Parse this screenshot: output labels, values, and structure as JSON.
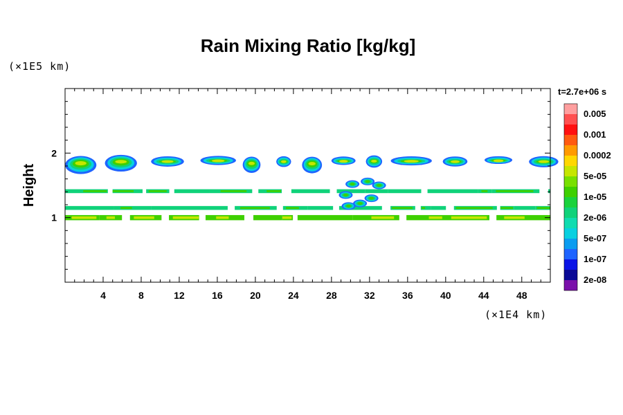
{
  "chart_data": {
    "type": "heatmap",
    "title": "Rain Mixing Ratio [kg/kg]",
    "ylabel": "Height",
    "xunit": "(×1E4 km)",
    "yunit": "(×1E5 km)",
    "time_label": "t=2.7e+06 s",
    "xlim": [
      0,
      51
    ],
    "ylim": [
      0,
      3
    ],
    "xticks": [
      4,
      8,
      12,
      16,
      20,
      24,
      28,
      32,
      36,
      40,
      44,
      48
    ],
    "yticks": [
      1,
      2
    ],
    "colorbar": [
      {
        "label": "0.005",
        "color": "#ff9f9f"
      },
      {
        "label": "",
        "color": "#ff5050"
      },
      {
        "label": "0.001",
        "color": "#ff1010"
      },
      {
        "label": "",
        "color": "#ff5a10"
      },
      {
        "label": "0.0002",
        "color": "#ff9a00"
      },
      {
        "label": "",
        "color": "#ffd700"
      },
      {
        "label": "5e-05",
        "color": "#c6e600"
      },
      {
        "label": "",
        "color": "#78e000"
      },
      {
        "label": "1e-05",
        "color": "#3ed000"
      },
      {
        "label": "",
        "color": "#1ad23c"
      },
      {
        "label": "2e-06",
        "color": "#10d27a"
      },
      {
        "label": "",
        "color": "#10dcb0"
      },
      {
        "label": "5e-07",
        "color": "#08d0e0"
      },
      {
        "label": "",
        "color": "#0a9cf0"
      },
      {
        "label": "1e-07",
        "color": "#1e64ff"
      },
      {
        "label": "",
        "color": "#0a14e6"
      },
      {
        "label": "2e-08",
        "color": "#0a0a96"
      },
      {
        "label": "",
        "color": "#7a10aa"
      }
    ],
    "bands": [
      {
        "name": "upper-cloud-layer",
        "y_range": [
          1.72,
          2.0
        ],
        "levels": [
          "1e-07",
          "5e-07",
          "2e-06",
          "1e-05",
          "5e-05"
        ]
      },
      {
        "name": "mid-layer-1.4",
        "y_range": [
          1.38,
          1.44
        ],
        "levels": [
          "2e-06",
          "1e-05"
        ]
      },
      {
        "name": "mid-layer-1.15",
        "y_range": [
          1.12,
          1.18
        ],
        "levels": [
          "2e-06",
          "1e-05"
        ]
      },
      {
        "name": "lower-layer-1.0",
        "y_range": [
          0.96,
          1.04
        ],
        "levels": [
          "1e-05",
          "5e-05"
        ]
      },
      {
        "name": "convective-column-x30",
        "y_range": [
          1.1,
          1.6
        ],
        "levels": [
          "1e-07",
          "5e-07",
          "2e-06",
          "1e-05"
        ]
      }
    ]
  }
}
